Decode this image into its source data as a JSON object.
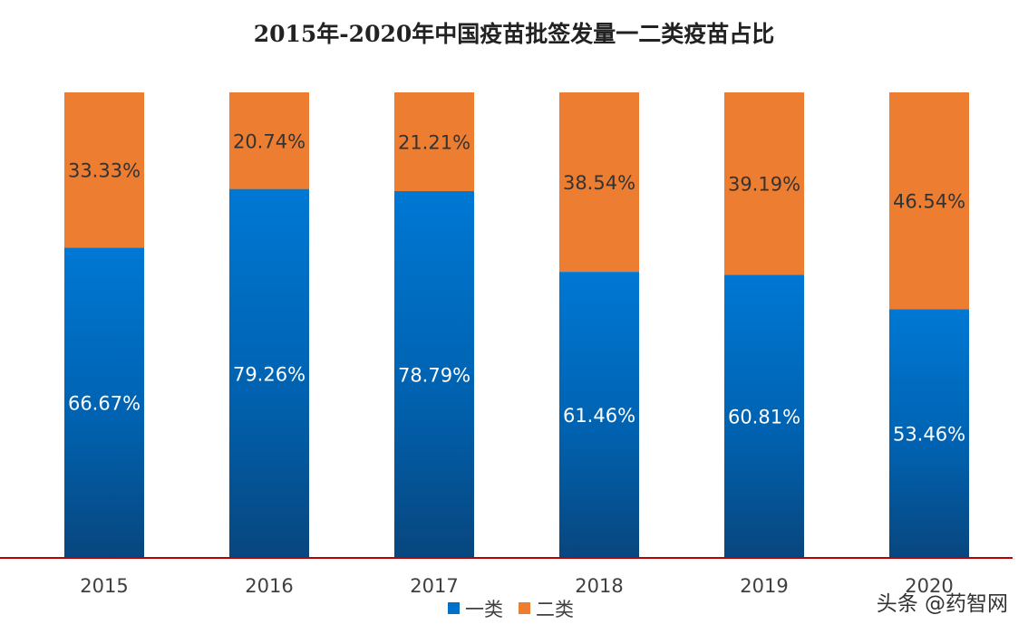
{
  "chart_data": {
    "type": "bar",
    "stacked": true,
    "percent": true,
    "title": "2015年-2020年中国疫苗批签发量一二类疫苗占比",
    "categories": [
      "2015",
      "2016",
      "2017",
      "2018",
      "2019",
      "2020"
    ],
    "series": [
      {
        "name": "一类",
        "color": "#0070c8",
        "values": [
          66.67,
          79.26,
          78.79,
          61.46,
          60.81,
          53.46
        ],
        "labels": [
          "66.67%",
          "79.26%",
          "78.79%",
          "61.46%",
          "60.81%",
          "53.46%"
        ]
      },
      {
        "name": "二类",
        "color": "#ed7d31",
        "values": [
          33.33,
          20.74,
          21.21,
          38.54,
          39.19,
          46.54
        ],
        "labels": [
          "33.33%",
          "20.74%",
          "21.21%",
          "38.54%",
          "39.19%",
          "46.54%"
        ]
      }
    ],
    "ylim": [
      0,
      100
    ],
    "grid": false,
    "legend": "bottom",
    "axis_line_color": "#c00000"
  },
  "watermark": {
    "text": "头条 @药智网"
  }
}
